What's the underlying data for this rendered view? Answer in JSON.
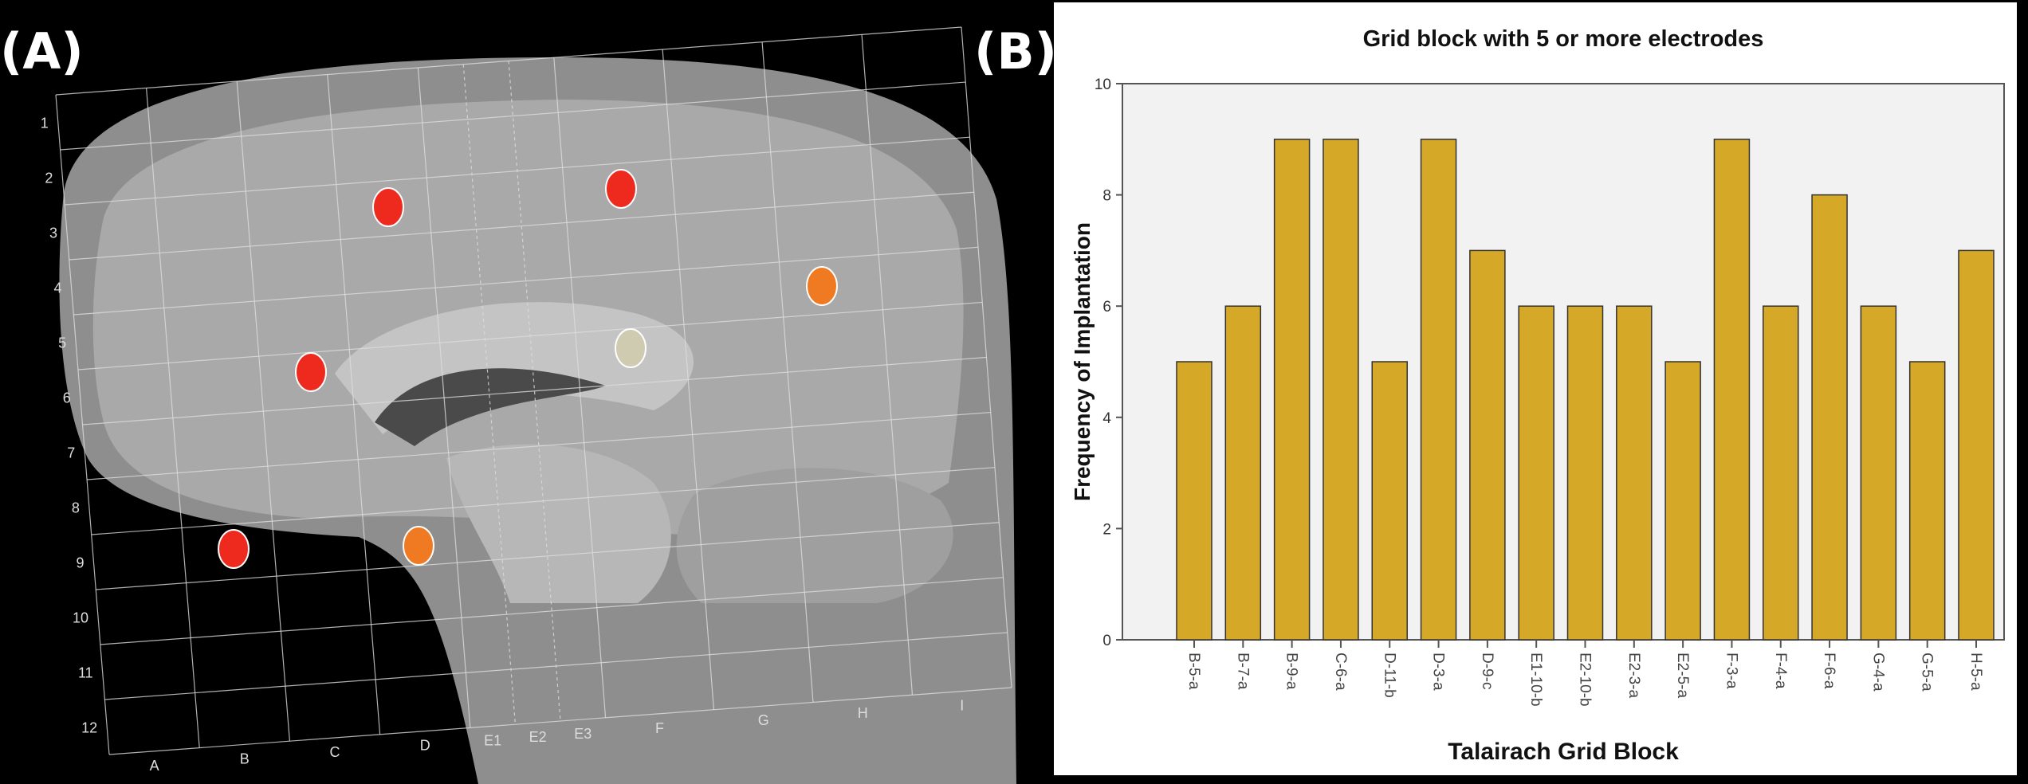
{
  "panels": {
    "a_label": "(A)",
    "b_label": "(B)"
  },
  "mri": {
    "row_labels": [
      "1",
      "2",
      "3",
      "4",
      "5",
      "6",
      "7",
      "8",
      "9",
      "10",
      "11",
      "12"
    ],
    "col_labels": [
      "A",
      "B",
      "C",
      "D",
      "E1",
      "E2",
      "E3",
      "F",
      "G",
      "H",
      "I"
    ],
    "electrodes": [
      {
        "color": "#ee2a1e",
        "label": "red"
      },
      {
        "color": "#ee2a1e",
        "label": "red"
      },
      {
        "color": "#ee2a1e",
        "label": "red"
      },
      {
        "color": "#ee2a1e",
        "label": "red"
      },
      {
        "color": "#f07a22",
        "label": "orange"
      },
      {
        "color": "#f07a22",
        "label": "orange"
      },
      {
        "color": "#cfcbb0",
        "label": "beige"
      }
    ]
  },
  "chart_data": {
    "type": "bar",
    "title": "Grid block with 5 or more electrodes",
    "xlabel": "Talairach Grid Block",
    "ylabel": "Frequency of Implantation",
    "categories": [
      "B-5-a",
      "B-7-a",
      "B-9-a",
      "C-6-a",
      "D-11-b",
      "D-3-a",
      "D-9-c",
      "E1-10-b",
      "E2-10-b",
      "E2-3-a",
      "E2-5-a",
      "F-3-a",
      "F-4-a",
      "F-6-a",
      "G-4-a",
      "G-5-a",
      "H-5-a"
    ],
    "values": [
      5,
      6,
      9,
      9,
      5,
      9,
      7,
      6,
      6,
      6,
      5,
      9,
      6,
      8,
      6,
      5,
      7
    ],
    "ylim": [
      0,
      10
    ],
    "yticks": [
      "0",
      "2",
      "4",
      "6",
      "8",
      "10"
    ],
    "bar_color": "#d6a828",
    "plot_bg": "#f2f2f2",
    "grid": false
  }
}
